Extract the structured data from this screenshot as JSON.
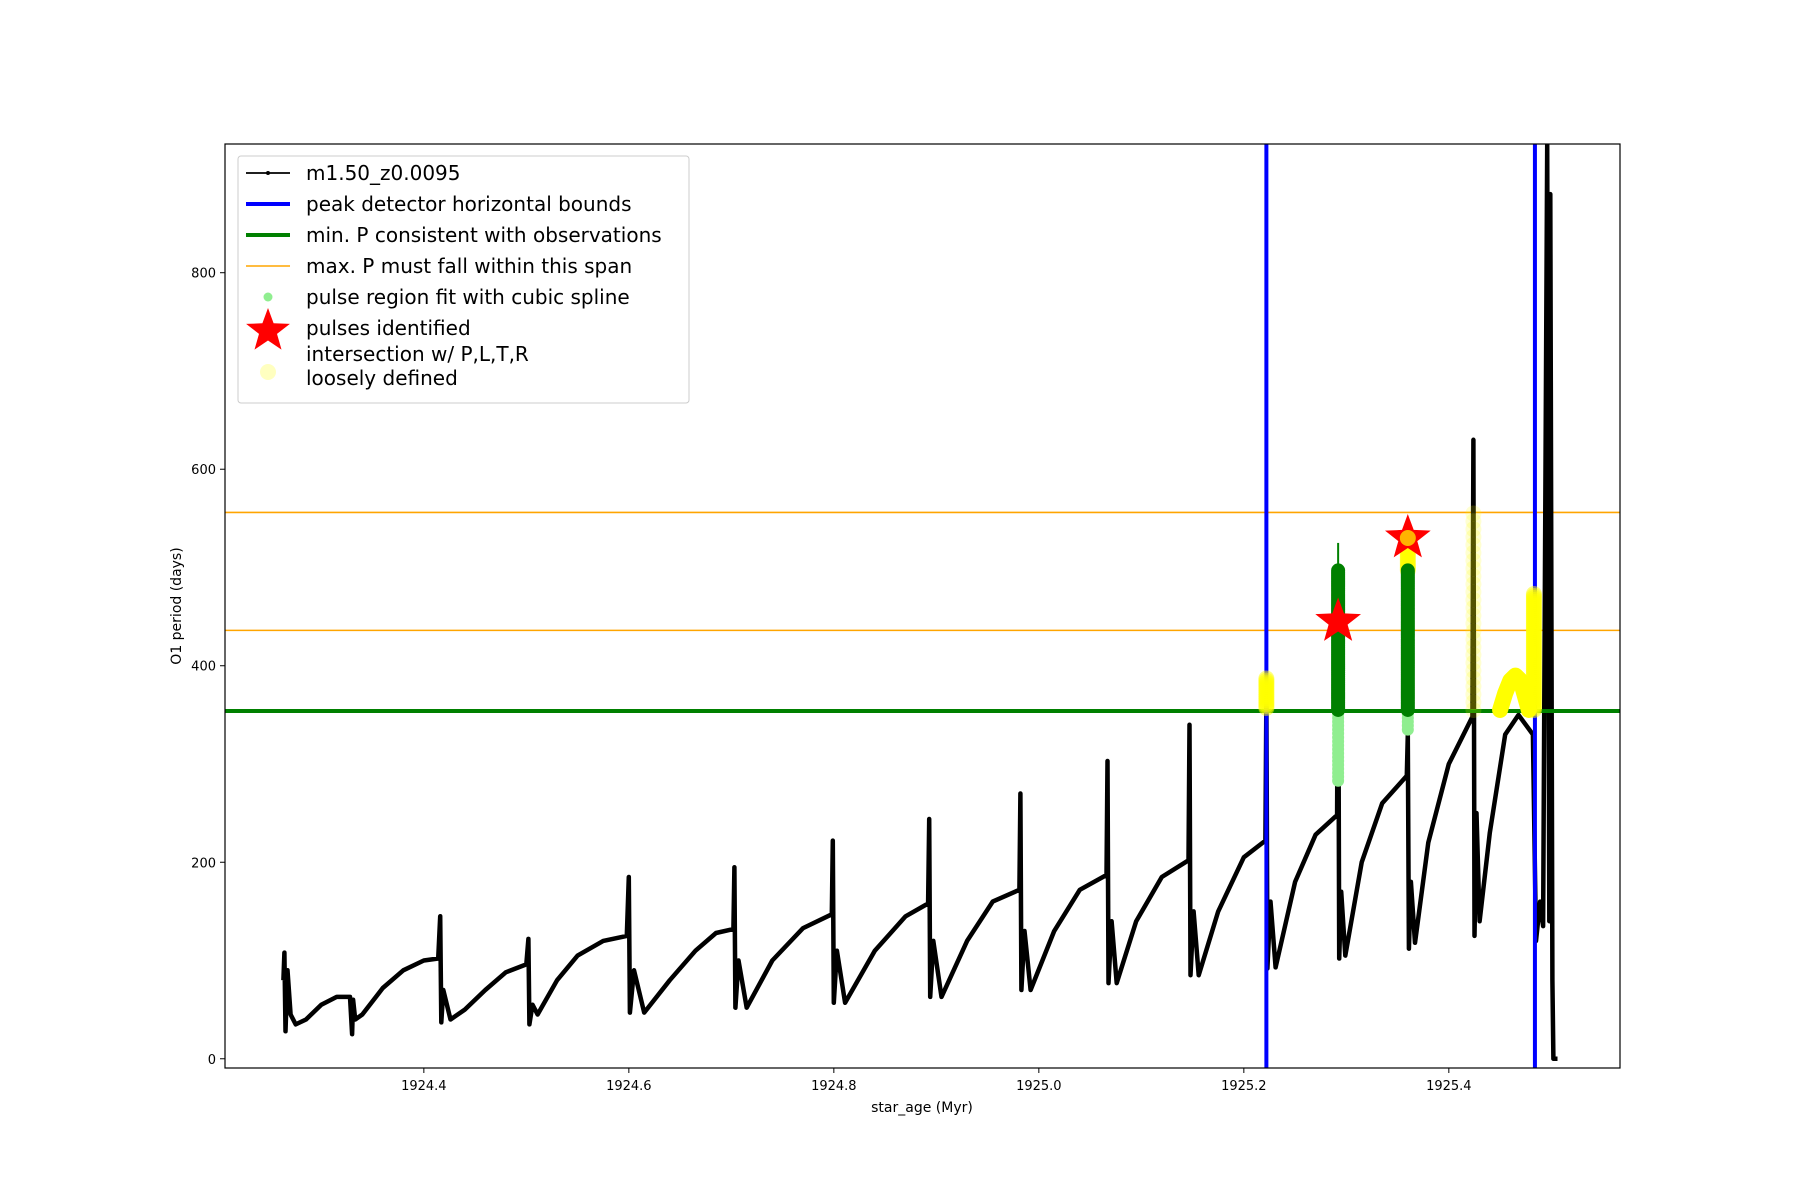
{
  "chart_data": {
    "type": "line",
    "title": "",
    "xlabel": "star_age (Myr)",
    "ylabel": "O1 period (days)",
    "xlim": [
      1924.206,
      1925.567
    ],
    "ylim": [
      -9.4,
      931
    ],
    "grid": false,
    "legend_placement": "upper-left",
    "x_ticks": [
      1924.4,
      1924.6,
      1924.8,
      1925.0,
      1925.2,
      1925.4
    ],
    "x_tick_labels": [
      "1924.4",
      "1924.6",
      "1924.8",
      "1925.0",
      "1925.2",
      "1925.4"
    ],
    "y_ticks": [
      0,
      200,
      400,
      600,
      800
    ],
    "y_tick_labels": [
      "0",
      "200",
      "400",
      "600",
      "800"
    ],
    "colors": {
      "model": "#000000",
      "bounds": "#0000ff",
      "min_p": "#008000",
      "max_p": "#ffa500",
      "spline": "#90ee90",
      "spline_dark": "#008000",
      "pulses": "#ff0000",
      "loose": "#ffff00"
    },
    "legend": [
      {
        "label": "m1.50_z0.0095",
        "kind": "line-marker",
        "color": "#000000"
      },
      {
        "label": "peak detector horizontal bounds",
        "kind": "line",
        "color": "#0000ff"
      },
      {
        "label": "min. P consistent with observations",
        "kind": "line",
        "color": "#008000"
      },
      {
        "label": "max. P must fall within this span",
        "kind": "thin-line",
        "color": "#ffa500"
      },
      {
        "label": "pulse region fit with cubic spline",
        "kind": "dot",
        "color": "#90ee90"
      },
      {
        "label": "pulses identified",
        "kind": "star",
        "color": "#ff0000"
      },
      {
        "label": "intersection w/ P,L,T,R\nloosely defined",
        "kind": "big-dot",
        "color": "#ffffc0"
      }
    ],
    "series": [
      {
        "name": "m1.50_z0.0095",
        "points": [
          [
            1924.263,
            80
          ],
          [
            1924.264,
            108
          ],
          [
            1924.265,
            28
          ],
          [
            1924.267,
            90
          ],
          [
            1924.27,
            45
          ],
          [
            1924.275,
            35
          ],
          [
            1924.285,
            40
          ],
          [
            1924.3,
            55
          ],
          [
            1924.315,
            63
          ],
          [
            1924.328,
            63
          ],
          [
            1924.33,
            25
          ],
          [
            1924.331,
            60
          ],
          [
            1924.333,
            40
          ],
          [
            1924.34,
            45
          ],
          [
            1924.36,
            72
          ],
          [
            1924.38,
            90
          ],
          [
            1924.4,
            100
          ],
          [
            1924.414,
            102
          ],
          [
            1924.416,
            145
          ],
          [
            1924.417,
            37
          ],
          [
            1924.419,
            70
          ],
          [
            1924.426,
            40
          ],
          [
            1924.44,
            50
          ],
          [
            1924.46,
            70
          ],
          [
            1924.48,
            88
          ],
          [
            1924.5,
            96
          ],
          [
            1924.502,
            122
          ],
          [
            1924.503,
            35
          ],
          [
            1924.506,
            55
          ],
          [
            1924.511,
            45
          ],
          [
            1924.53,
            80
          ],
          [
            1924.55,
            105
          ],
          [
            1924.575,
            120
          ],
          [
            1924.598,
            125
          ],
          [
            1924.6,
            185
          ],
          [
            1924.601,
            47
          ],
          [
            1924.605,
            90
          ],
          [
            1924.615,
            47
          ],
          [
            1924.64,
            80
          ],
          [
            1924.665,
            110
          ],
          [
            1924.685,
            128
          ],
          [
            1924.702,
            132
          ],
          [
            1924.703,
            195
          ],
          [
            1924.704,
            52
          ],
          [
            1924.707,
            100
          ],
          [
            1924.715,
            52
          ],
          [
            1924.74,
            100
          ],
          [
            1924.77,
            133
          ],
          [
            1924.798,
            147
          ],
          [
            1924.799,
            222
          ],
          [
            1924.8,
            57
          ],
          [
            1924.803,
            110
          ],
          [
            1924.811,
            57
          ],
          [
            1924.84,
            110
          ],
          [
            1924.87,
            145
          ],
          [
            1924.892,
            158
          ],
          [
            1924.893,
            244
          ],
          [
            1924.894,
            63
          ],
          [
            1924.897,
            120
          ],
          [
            1924.905,
            63
          ],
          [
            1924.93,
            120
          ],
          [
            1924.955,
            160
          ],
          [
            1924.981,
            172
          ],
          [
            1924.982,
            270
          ],
          [
            1924.983,
            70
          ],
          [
            1924.986,
            130
          ],
          [
            1924.992,
            70
          ],
          [
            1925.015,
            130
          ],
          [
            1925.04,
            172
          ],
          [
            1925.066,
            187
          ],
          [
            1925.067,
            303
          ],
          [
            1925.068,
            77
          ],
          [
            1925.071,
            140
          ],
          [
            1925.076,
            77
          ],
          [
            1925.095,
            140
          ],
          [
            1925.12,
            185
          ],
          [
            1925.146,
            202
          ],
          [
            1925.147,
            340
          ],
          [
            1925.148,
            85
          ],
          [
            1925.151,
            150
          ],
          [
            1925.156,
            85
          ],
          [
            1925.175,
            150
          ],
          [
            1925.2,
            205
          ],
          [
            1925.221,
            222
          ],
          [
            1925.222,
            370
          ],
          [
            1925.223,
            92
          ],
          [
            1925.226,
            160
          ],
          [
            1925.231,
            93
          ],
          [
            1925.25,
            180
          ],
          [
            1925.27,
            228
          ],
          [
            1925.291,
            248
          ],
          [
            1925.292,
            480
          ],
          [
            1925.293,
            102
          ],
          [
            1925.295,
            170
          ],
          [
            1925.299,
            105
          ],
          [
            1925.315,
            200
          ],
          [
            1925.335,
            260
          ],
          [
            1925.359,
            288
          ],
          [
            1925.36,
            330
          ],
          [
            1925.361,
            112
          ],
          [
            1925.363,
            180
          ],
          [
            1925.367,
            118
          ],
          [
            1925.38,
            220
          ],
          [
            1925.4,
            300
          ],
          [
            1925.423,
            348
          ],
          [
            1925.424,
            630
          ],
          [
            1925.425,
            125
          ],
          [
            1925.427,
            250
          ],
          [
            1925.43,
            140
          ],
          [
            1925.44,
            230
          ],
          [
            1925.455,
            330
          ],
          [
            1925.468,
            350
          ],
          [
            1925.482,
            330
          ],
          [
            1925.485,
            120
          ],
          [
            1925.489,
            160
          ],
          [
            1925.492,
            135
          ],
          [
            1925.496,
            930
          ],
          [
            1925.498,
            140
          ],
          [
            1925.499,
            880
          ],
          [
            1925.501,
            80
          ],
          [
            1925.502,
            0
          ],
          [
            1925.506,
            0
          ]
        ]
      }
    ],
    "vertical_bounds": [
      1925.222,
      1925.484
    ],
    "min_p_line": 354,
    "max_p_span": [
      436,
      556
    ],
    "pulse_region_fit": [
      {
        "x": 1925.292,
        "y_range": [
          283,
          355
        ],
        "shade": "light"
      },
      {
        "x": 1925.292,
        "y_range": [
          355,
          497
        ],
        "shade": "dark"
      },
      {
        "x": 1925.36,
        "y_range": [
          335,
          355
        ],
        "shade": "light"
      },
      {
        "x": 1925.36,
        "y_range": [
          355,
          497
        ],
        "shade": "dark"
      }
    ],
    "pulses_identified": [
      [
        1925.292,
        445
      ],
      [
        1925.36,
        530
      ]
    ],
    "loosely_defined": {
      "columns": [
        {
          "x": 1925.222,
          "y_range": [
            357,
            388
          ],
          "opacity": "solid"
        },
        {
          "x": 1925.36,
          "y_range": [
            497,
            530
          ],
          "opacity": "solid"
        },
        {
          "x": 1925.424,
          "y_range": [
            355,
            555
          ],
          "opacity": "faint"
        },
        {
          "x": 1925.483,
          "y_range": [
            355,
            473
          ],
          "opacity": "solid"
        }
      ],
      "curve": [
        [
          1925.45,
          355
        ],
        [
          1925.455,
          372
        ],
        [
          1925.46,
          385
        ],
        [
          1925.465,
          390
        ],
        [
          1925.47,
          385
        ],
        [
          1925.474,
          370
        ],
        [
          1925.478,
          355
        ]
      ]
    }
  }
}
